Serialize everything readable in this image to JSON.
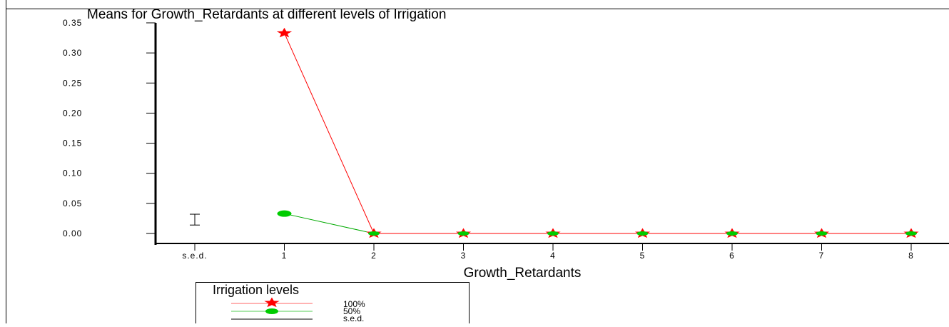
{
  "chart_data": {
    "type": "line",
    "title": "Means for Growth_Retardants at different levels of Irrigation",
    "xlabel": "Growth_Retardants",
    "ylabel": "",
    "categories": [
      "s.e.d.",
      "1",
      "2",
      "3",
      "4",
      "5",
      "6",
      "7",
      "8"
    ],
    "y_ticks": [
      "0.00",
      "0.05",
      "0.10",
      "0.15",
      "0.20",
      "0.25",
      "0.30",
      "0.35"
    ],
    "ylim": [
      0,
      0.35
    ],
    "grid": false,
    "legend_position": "bottom-left",
    "legend_title": "Irrigation levels",
    "sed_value": 0.018,
    "sed_center": 0.023,
    "series": [
      {
        "name": "100%",
        "marker": "star",
        "color": "#ff0000",
        "line_color": "#ff0000",
        "x": [
          "1",
          "2",
          "3",
          "4",
          "5",
          "6",
          "7",
          "8"
        ],
        "values": [
          0.333,
          0,
          0,
          0,
          0,
          0,
          0,
          0
        ]
      },
      {
        "name": "50%",
        "marker": "circle",
        "color": "#00cc00",
        "line_color": "#00aa00",
        "x": [
          "1",
          "2",
          "3",
          "4",
          "5",
          "6",
          "7",
          "8"
        ],
        "values": [
          0.033,
          0,
          0,
          0,
          0,
          0,
          0,
          0
        ]
      }
    ],
    "legend_entries": [
      "100%",
      "50%",
      "s.e.d."
    ]
  }
}
